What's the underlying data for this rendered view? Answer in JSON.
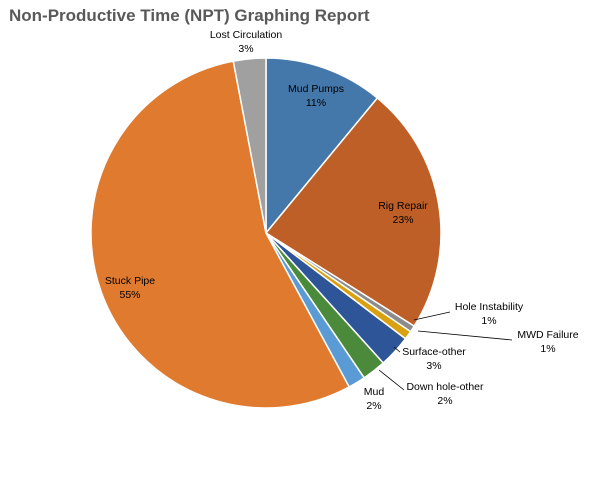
{
  "chart_data": {
    "type": "pie",
    "title": "Non-Productive Time (NPT) Graphing Report",
    "slices": [
      {
        "label": "Mud Pumps",
        "value": 11,
        "value_label": "11%",
        "color": "#4477aa"
      },
      {
        "label": "Rig Repair",
        "value": 23,
        "value_label": "23%",
        "color": "#bd5f26"
      },
      {
        "label": "Hole Instability",
        "value": 0.6,
        "value_label": "1%",
        "color": "#8c8c8c"
      },
      {
        "label": "MWD Failure",
        "value": 0.8,
        "value_label": "1%",
        "color": "#d9a110"
      },
      {
        "label": "Surface-other",
        "value": 3,
        "value_label": "3%",
        "color": "#2e5597"
      },
      {
        "label": "Down hole-other",
        "value": 2.2,
        "value_label": "2%",
        "color": "#4b8a3a"
      },
      {
        "label": "Mud",
        "value": 1.6,
        "value_label": "2%",
        "color": "#5b9bd5"
      },
      {
        "label": "Stuck Pipe",
        "value": 55,
        "value_label": "55%",
        "color": "#e07a2f"
      },
      {
        "label": "Lost Circulation",
        "value": 3,
        "value_label": "3%",
        "color": "#a0a0a0"
      }
    ],
    "start": "12 o'clock",
    "direction": "clockwise",
    "legend": "none"
  }
}
